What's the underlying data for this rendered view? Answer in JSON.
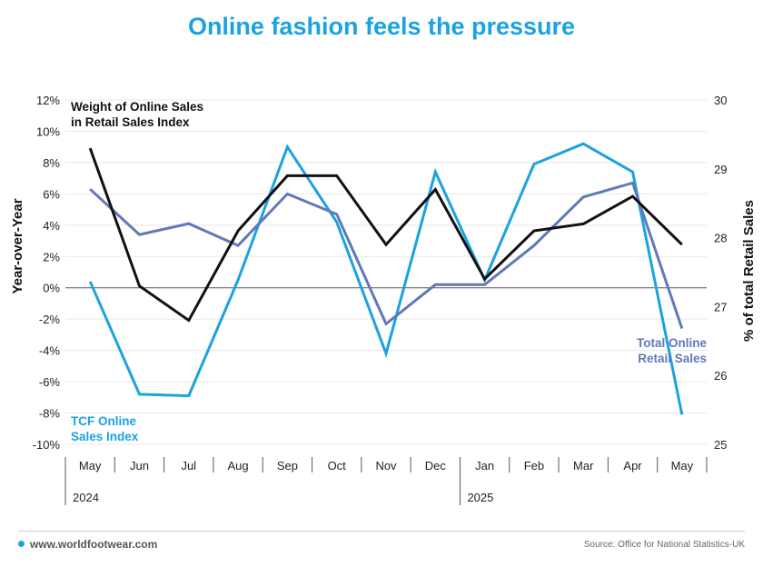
{
  "title": "Online fashion feels the pressure",
  "footer": {
    "website": "www.worldfootwear.com",
    "source": "Source: Office for National Statistics-UK"
  },
  "colors": {
    "tcf": "#1aa3e0",
    "total": "#6279b8",
    "weight": "#111111",
    "title": "#1aa3e0"
  },
  "chart_data": {
    "type": "line",
    "title": "Online fashion feels the pressure",
    "categories": [
      "May",
      "Jun",
      "Jul",
      "Aug",
      "Sep",
      "Oct",
      "Nov",
      "Dec",
      "Jan",
      "Feb",
      "Mar",
      "Apr",
      "May"
    ],
    "years": [
      {
        "label": "2024",
        "start_index": 0
      },
      {
        "label": "2025",
        "start_index": 8
      }
    ],
    "ylabel_left": "Year-over-Year",
    "ylabel_right": "% of total Retail Sales",
    "ylim_left": [
      -10,
      12
    ],
    "yticks_left": [
      "12%",
      "10%",
      "8%",
      "6%",
      "4%",
      "2%",
      "0%",
      "-2%",
      "-4%",
      "-6%",
      "-8%",
      "-10%"
    ],
    "ylim_right": [
      25,
      30
    ],
    "yticks_right": [
      "30",
      "29",
      "28",
      "27",
      "26",
      "25"
    ],
    "series": [
      {
        "name": "TCF Online Sales Index",
        "label_lines": [
          "TCF Online",
          "Sales Index"
        ],
        "axis": "left",
        "color": "#1aa3e0",
        "values": [
          0.4,
          -6.8,
          -6.9,
          0.5,
          9.0,
          4.2,
          -4.2,
          7.4,
          0.5,
          7.9,
          9.2,
          7.4,
          -8.1
        ]
      },
      {
        "name": "Total Online Retail Sales",
        "label_lines": [
          "Total Online",
          "Retail Sales"
        ],
        "axis": "left",
        "color": "#6279b8",
        "values": [
          6.3,
          3.4,
          4.1,
          2.7,
          6.0,
          4.7,
          -2.3,
          0.2,
          0.2,
          2.7,
          5.8,
          6.7,
          -2.6
        ]
      },
      {
        "name": "Weight of Online Sales in Retail Sales Index",
        "label_lines": [
          "Weight of Online Sales",
          "in Retail Sales Index"
        ],
        "axis": "right",
        "color": "#111111",
        "values": [
          29.3,
          27.3,
          26.8,
          28.1,
          28.9,
          28.9,
          27.9,
          28.7,
          27.4,
          28.1,
          28.2,
          28.6,
          27.9
        ]
      }
    ]
  }
}
